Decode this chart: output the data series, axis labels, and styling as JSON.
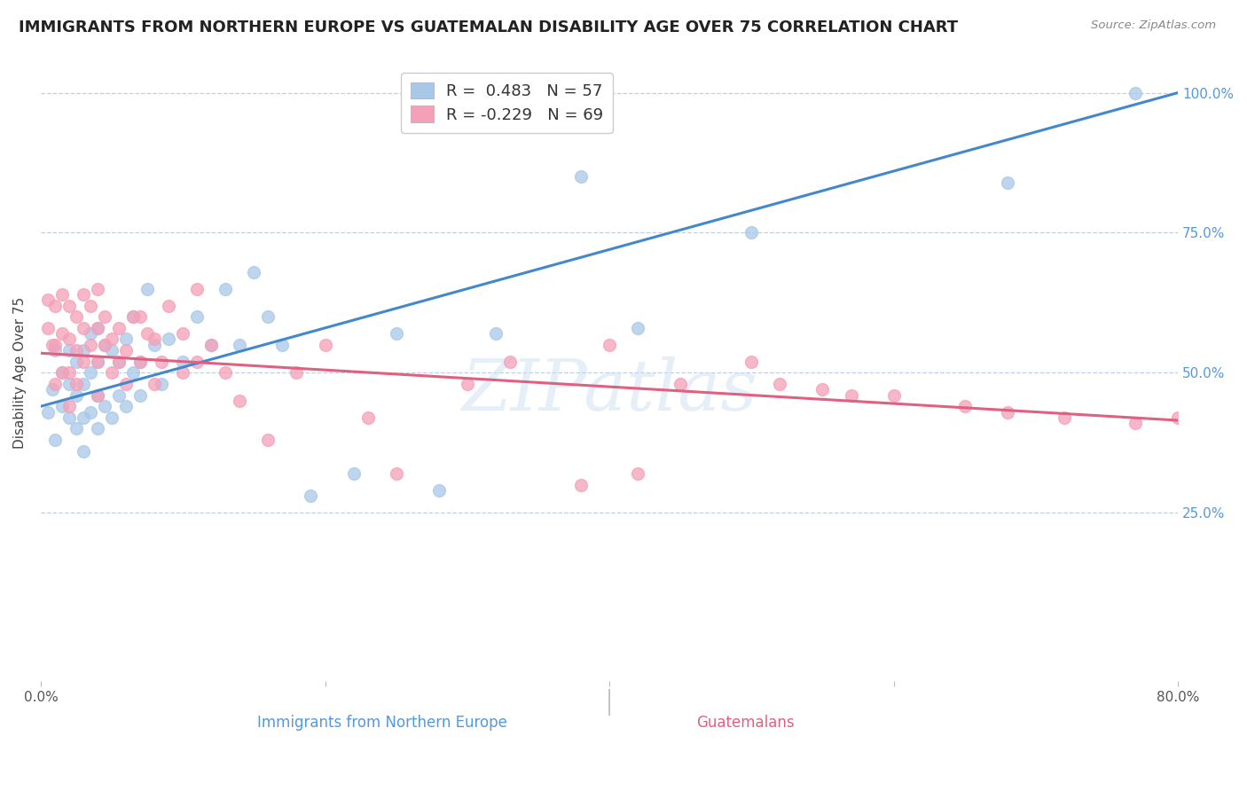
{
  "title": "IMMIGRANTS FROM NORTHERN EUROPE VS GUATEMALAN DISABILITY AGE OVER 75 CORRELATION CHART",
  "source": "Source: ZipAtlas.com",
  "xlabel_bottom": "Immigrants from Northern Europe",
  "xlabel_bottom2": "Guatemalans",
  "ylabel": "Disability Age Over 75",
  "xlim": [
    0.0,
    0.8
  ],
  "ylim": [
    -0.05,
    1.05
  ],
  "y_ticks_right": [
    0.25,
    0.5,
    0.75,
    1.0
  ],
  "y_tick_labels_right": [
    "25.0%",
    "50.0%",
    "75.0%",
    "100.0%"
  ],
  "blue_R": 0.483,
  "blue_N": 57,
  "pink_R": -0.229,
  "pink_N": 69,
  "blue_color": "#a8c8e8",
  "pink_color": "#f4a0b8",
  "blue_line_color": "#4488cc",
  "pink_line_color": "#e06080",
  "watermark": "ZIPatlas",
  "blue_line_x0": 0.0,
  "blue_line_y0": 0.44,
  "blue_line_x1": 0.8,
  "blue_line_y1": 1.0,
  "pink_line_x0": 0.0,
  "pink_line_y0": 0.535,
  "pink_line_x1": 0.8,
  "pink_line_y1": 0.415,
  "blue_scatter_x": [
    0.005,
    0.008,
    0.01,
    0.01,
    0.015,
    0.015,
    0.02,
    0.02,
    0.02,
    0.025,
    0.025,
    0.025,
    0.03,
    0.03,
    0.03,
    0.03,
    0.035,
    0.035,
    0.035,
    0.04,
    0.04,
    0.04,
    0.04,
    0.045,
    0.045,
    0.05,
    0.05,
    0.055,
    0.055,
    0.06,
    0.06,
    0.065,
    0.065,
    0.07,
    0.07,
    0.075,
    0.08,
    0.085,
    0.09,
    0.1,
    0.11,
    0.12,
    0.13,
    0.14,
    0.15,
    0.16,
    0.17,
    0.19,
    0.22,
    0.25,
    0.28,
    0.32,
    0.38,
    0.42,
    0.5,
    0.68,
    0.77
  ],
  "blue_scatter_y": [
    0.43,
    0.47,
    0.38,
    0.54,
    0.44,
    0.5,
    0.42,
    0.48,
    0.54,
    0.4,
    0.46,
    0.52,
    0.36,
    0.42,
    0.48,
    0.54,
    0.43,
    0.5,
    0.57,
    0.4,
    0.46,
    0.52,
    0.58,
    0.44,
    0.55,
    0.42,
    0.54,
    0.46,
    0.52,
    0.44,
    0.56,
    0.5,
    0.6,
    0.46,
    0.52,
    0.65,
    0.55,
    0.48,
    0.56,
    0.52,
    0.6,
    0.55,
    0.65,
    0.55,
    0.68,
    0.6,
    0.55,
    0.28,
    0.32,
    0.57,
    0.29,
    0.57,
    0.85,
    0.58,
    0.75,
    0.84,
    1.0
  ],
  "pink_scatter_x": [
    0.005,
    0.005,
    0.008,
    0.01,
    0.01,
    0.01,
    0.015,
    0.015,
    0.015,
    0.02,
    0.02,
    0.02,
    0.02,
    0.025,
    0.025,
    0.025,
    0.03,
    0.03,
    0.03,
    0.035,
    0.035,
    0.04,
    0.04,
    0.04,
    0.04,
    0.045,
    0.045,
    0.05,
    0.05,
    0.055,
    0.055,
    0.06,
    0.06,
    0.065,
    0.07,
    0.07,
    0.075,
    0.08,
    0.08,
    0.085,
    0.09,
    0.1,
    0.1,
    0.11,
    0.11,
    0.12,
    0.13,
    0.14,
    0.16,
    0.18,
    0.2,
    0.23,
    0.25,
    0.3,
    0.33,
    0.38,
    0.4,
    0.42,
    0.45,
    0.5,
    0.52,
    0.55,
    0.57,
    0.6,
    0.65,
    0.68,
    0.72,
    0.77,
    0.8
  ],
  "pink_scatter_y": [
    0.58,
    0.63,
    0.55,
    0.48,
    0.55,
    0.62,
    0.5,
    0.57,
    0.64,
    0.44,
    0.5,
    0.56,
    0.62,
    0.48,
    0.54,
    0.6,
    0.52,
    0.58,
    0.64,
    0.55,
    0.62,
    0.46,
    0.52,
    0.58,
    0.65,
    0.55,
    0.6,
    0.5,
    0.56,
    0.52,
    0.58,
    0.48,
    0.54,
    0.6,
    0.52,
    0.6,
    0.57,
    0.48,
    0.56,
    0.52,
    0.62,
    0.5,
    0.57,
    0.52,
    0.65,
    0.55,
    0.5,
    0.45,
    0.38,
    0.5,
    0.55,
    0.42,
    0.32,
    0.48,
    0.52,
    0.3,
    0.55,
    0.32,
    0.48,
    0.52,
    0.48,
    0.47,
    0.46,
    0.46,
    0.44,
    0.43,
    0.42,
    0.41,
    0.42
  ]
}
